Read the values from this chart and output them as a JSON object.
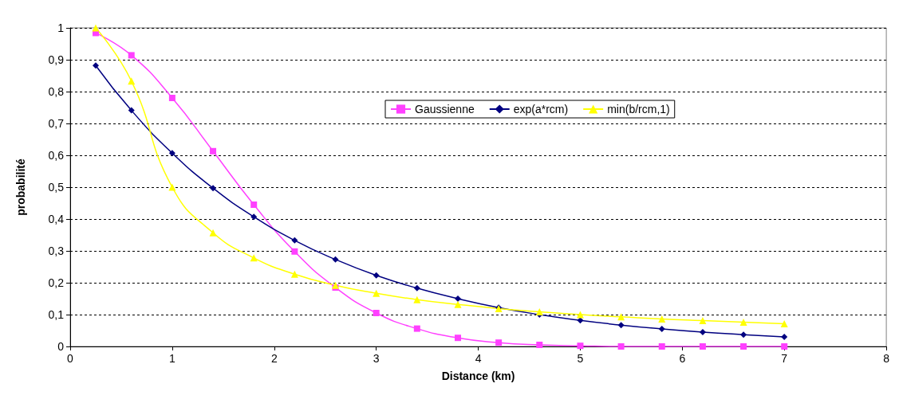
{
  "chart_data": {
    "type": "line",
    "xlabel": "Distance (km)",
    "ylabel": "probabilité",
    "x": [
      0.25,
      0.6,
      1,
      1.4,
      1.8,
      2.2,
      2.6,
      3,
      3.4,
      3.8,
      4.2,
      4.6,
      5,
      5.4,
      5.8,
      6.2,
      6.6,
      7
    ],
    "series": [
      {
        "name": "Gaussienne",
        "color": "#ff40ff",
        "marker": "square",
        "values": [
          0.984,
          0.914,
          0.78,
          0.613,
          0.445,
          0.298,
          0.185,
          0.105,
          0.056,
          0.027,
          0.012,
          0.005,
          0.002,
          0,
          0,
          0,
          0,
          0
        ]
      },
      {
        "name": "exp(a*rcm)",
        "color": "#000080",
        "marker": "diamond",
        "values": [
          0.882,
          0.741,
          0.607,
          0.497,
          0.407,
          0.333,
          0.273,
          0.223,
          0.183,
          0.15,
          0.122,
          0.1,
          0.082,
          0.067,
          0.055,
          0.045,
          0.037,
          0.03
        ]
      },
      {
        "name": "min(b/rcm,1)",
        "color": "#ffff00",
        "marker": "triangle",
        "values": [
          1,
          0.833,
          0.5,
          0.357,
          0.278,
          0.227,
          0.192,
          0.167,
          0.147,
          0.132,
          0.119,
          0.109,
          0.1,
          0.093,
          0.086,
          0.081,
          0.076,
          0.071
        ]
      }
    ],
    "xlim": [
      0,
      8
    ],
    "xticks": [
      0,
      1,
      2,
      3,
      4,
      5,
      6,
      7,
      8
    ],
    "ylim": [
      0,
      1
    ],
    "yticks": [
      0,
      {
        "value": 0.1,
        "label": "0,1"
      },
      {
        "value": 0.2,
        "label": "0,2"
      },
      {
        "value": 0.3,
        "label": "0,3"
      },
      {
        "value": 0.4,
        "label": "0,4"
      },
      {
        "value": 0.5,
        "label": "0,5"
      },
      {
        "value": 0.6,
        "label": "0,6"
      },
      {
        "value": 0.7,
        "label": "0,7"
      },
      {
        "value": 0.8,
        "label": "0,8"
      },
      {
        "value": 0.9,
        "label": "0,9"
      },
      1
    ],
    "grid": "y",
    "legend": "top right"
  }
}
